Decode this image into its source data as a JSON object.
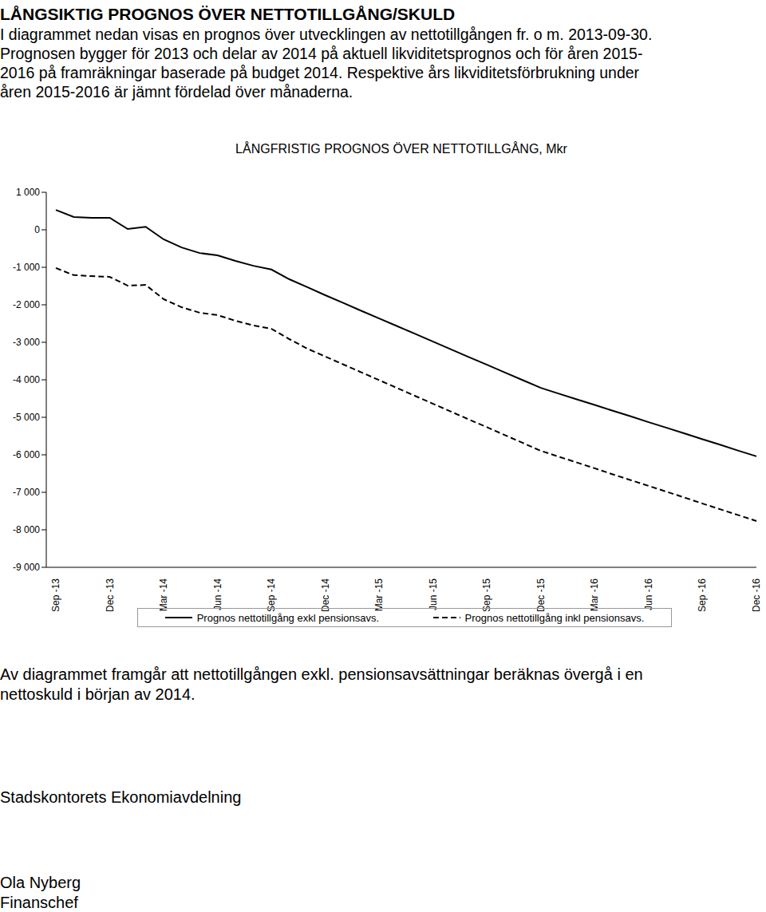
{
  "header": {
    "title": "LÅNGSIKTIG PROGNOS ÖVER NETTOTILLGÅNG/SKULD",
    "paragraph": [
      "I diagrammet nedan visas en prognos över utvecklingen av nettotillgången fr. o m. 2013-09-30.",
      "Prognosen bygger för 2013 och delar av 2014 på aktuell likviditetsprognos och för åren 2015-",
      "2016 på framräkningar baserade på budget 2014. Respektive års likviditetsförbrukning under",
      "åren 2015-2016 är jämnt fördelad över månaderna."
    ]
  },
  "chart_data": {
    "type": "line",
    "title": "LÅNGFRISTIG PROGNOS ÖVER NETTOTILLGÅNG, Mkr",
    "categories": [
      "Sep -13",
      null,
      null,
      "Dec -13",
      null,
      null,
      "Mar -14",
      null,
      null,
      "Jun -14",
      null,
      null,
      "Sep -14",
      null,
      null,
      "Dec -14",
      null,
      null,
      "Mar -15",
      null,
      null,
      "Jun -15",
      null,
      null,
      "Sep -15",
      null,
      null,
      "Dec -15",
      null,
      null,
      "Mar -16",
      null,
      null,
      "Jun -16",
      null,
      null,
      "Sep -16",
      null,
      null,
      "Dec -16"
    ],
    "series": [
      {
        "name": "Prognos nettotillgång exkl pensionsavs.",
        "color": "#000000",
        "line_style": "solid",
        "marker": "none",
        "values": [
          530,
          340,
          320,
          320,
          20,
          80,
          -255,
          -470,
          -620,
          -680,
          -830,
          -960,
          -1060,
          -1320,
          -1530,
          -1745,
          -1950,
          -2160,
          -2365,
          -2570,
          -2775,
          -2980,
          -3190,
          -3395,
          -3600,
          -3805,
          -4010,
          -4215,
          -4370,
          -4520,
          -4670,
          -4825,
          -4975,
          -5130,
          -5280,
          -5430,
          -5585,
          -5735,
          -5890,
          -6040
        ]
      },
      {
        "name": "Prognos nettotillgång inkl pensionsavs.",
        "color": "#000000",
        "line_style": "dashed",
        "marker": "none",
        "values": [
          -1020,
          -1210,
          -1235,
          -1255,
          -1490,
          -1470,
          -1850,
          -2065,
          -2210,
          -2275,
          -2425,
          -2550,
          -2640,
          -2915,
          -3170,
          -3380,
          -3590,
          -3800,
          -4010,
          -4220,
          -4430,
          -4640,
          -4850,
          -5060,
          -5265,
          -5475,
          -5685,
          -5895,
          -6050,
          -6205,
          -6360,
          -6520,
          -6675,
          -6830,
          -6985,
          -7140,
          -7300,
          -7455,
          -7610,
          -7765
        ]
      }
    ],
    "ylim": [
      -9000,
      1000
    ],
    "yticks": [
      {
        "value": 1000,
        "label": "1 000"
      },
      0,
      {
        "value": -1000,
        "label": "-1 000"
      },
      {
        "value": -2000,
        "label": "-2 000"
      },
      {
        "value": -3000,
        "label": "-3 000"
      },
      {
        "value": -4000,
        "label": "-4 000"
      },
      {
        "value": -5000,
        "label": "-5 000"
      },
      {
        "value": -6000,
        "label": "-6 000"
      },
      {
        "value": -7000,
        "label": "-7 000"
      },
      {
        "value": -8000,
        "label": "-8 000"
      },
      {
        "value": -9000,
        "label": "-9 000"
      }
    ],
    "grid": false,
    "legend": "bottom"
  },
  "conclusion": [
    "Av diagrammet framgår att nettotillgången exkl. pensionsavsättningar beräknas övergå i en",
    "nettoskuld i början av 2014."
  ],
  "footer": {
    "department": "Stadskontorets Ekonomiavdelning",
    "name": "Ola Nyberg",
    "role": "Finanschef"
  }
}
